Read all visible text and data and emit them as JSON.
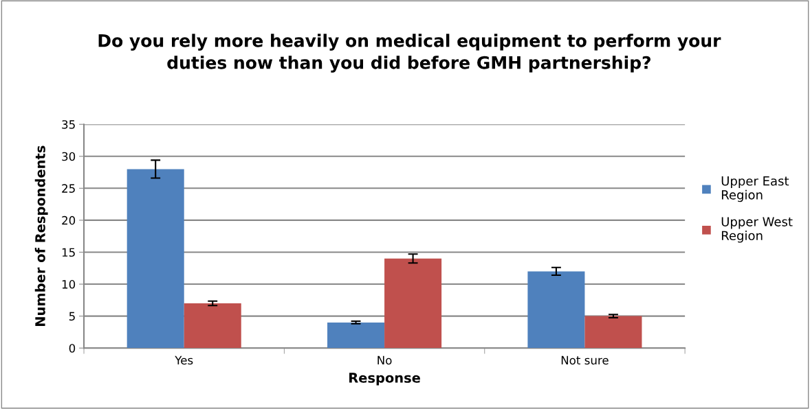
{
  "chart_data": {
    "type": "bar",
    "title": "Do you rely more heavily on medical equipment to perform your\nduties now than you did before GMH partnership?",
    "xlabel": "Response",
    "ylabel": "Number of Respondents",
    "categories": [
      "Yes",
      "No",
      "Not sure"
    ],
    "series": [
      {
        "name": "Upper East\nRegion",
        "color": "#4f81bd",
        "values": [
          28,
          4,
          12
        ],
        "errors": [
          1.4,
          0.2,
          0.6
        ]
      },
      {
        "name": "Upper West\nRegion",
        "color": "#c0504d",
        "values": [
          7,
          14,
          5
        ],
        "errors": [
          0.35,
          0.7,
          0.25
        ]
      }
    ],
    "ylim": [
      0,
      35
    ],
    "yticks": [
      0,
      5,
      10,
      15,
      20,
      25,
      30,
      35
    ],
    "grid": "y",
    "legend": "right"
  }
}
